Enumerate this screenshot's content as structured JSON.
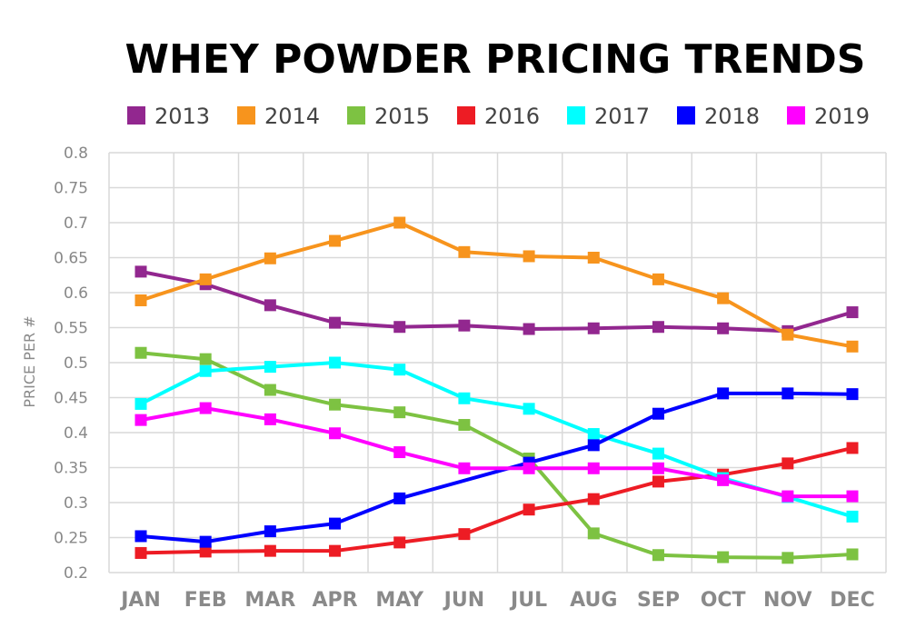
{
  "chart_data": {
    "type": "line",
    "title": "WHEY POWDER PRICING TRENDS",
    "xlabel": "",
    "ylabel": "PRICE PER #",
    "ylim": [
      0.2,
      0.8
    ],
    "yticks": [
      "0.2",
      "0.25",
      "0.3",
      "0.35",
      "0.4",
      "0.45",
      "0.5",
      "0.55",
      "0.6",
      "0.65",
      "0.7",
      "0.75",
      "0.8"
    ],
    "grid": true,
    "legend_position": "top",
    "categories": [
      "JAN",
      "FEB",
      "MAR",
      "APR",
      "MAY",
      "JUN",
      "JUL",
      "AUG",
      "SEP",
      "OCT",
      "NOV",
      "DEC"
    ],
    "series": [
      {
        "name": "2013",
        "color": "#92278f",
        "values": [
          0.63,
          0.612,
          0.582,
          0.557,
          0.551,
          0.553,
          0.548,
          0.549,
          0.551,
          0.549,
          0.545,
          0.572
        ]
      },
      {
        "name": "2014",
        "color": "#f7941d",
        "values": [
          0.589,
          0.619,
          0.649,
          0.674,
          0.7,
          0.658,
          0.652,
          0.65,
          0.619,
          0.592,
          0.54,
          0.523
        ]
      },
      {
        "name": "2015",
        "color": "#7dc242",
        "values": [
          0.514,
          0.505,
          0.461,
          0.44,
          0.429,
          0.411,
          0.363,
          0.256,
          0.225,
          0.222,
          0.221,
          0.226
        ]
      },
      {
        "name": "2016",
        "color": "#ed1c24",
        "values": [
          0.228,
          0.23,
          0.231,
          0.231,
          0.243,
          0.255,
          0.29,
          0.305,
          0.33,
          0.34,
          0.356,
          0.378
        ]
      },
      {
        "name": "2017",
        "color": "#00ffff",
        "values": [
          0.441,
          0.488,
          0.494,
          0.5,
          0.49,
          0.449,
          0.434,
          0.398,
          0.37,
          0.335,
          0.308,
          0.28
        ]
      },
      {
        "name": "2018",
        "color": "#0000ff",
        "values": [
          0.252,
          0.244,
          0.259,
          0.27,
          0.306,
          null,
          0.357,
          0.382,
          0.427,
          0.456,
          0.456,
          0.455
        ]
      },
      {
        "name": "2019",
        "color": "#ff00ff",
        "values": [
          0.418,
          0.435,
          0.419,
          0.399,
          0.372,
          0.349,
          0.349,
          0.349,
          0.349,
          0.332,
          0.309,
          0.309
        ]
      }
    ]
  }
}
